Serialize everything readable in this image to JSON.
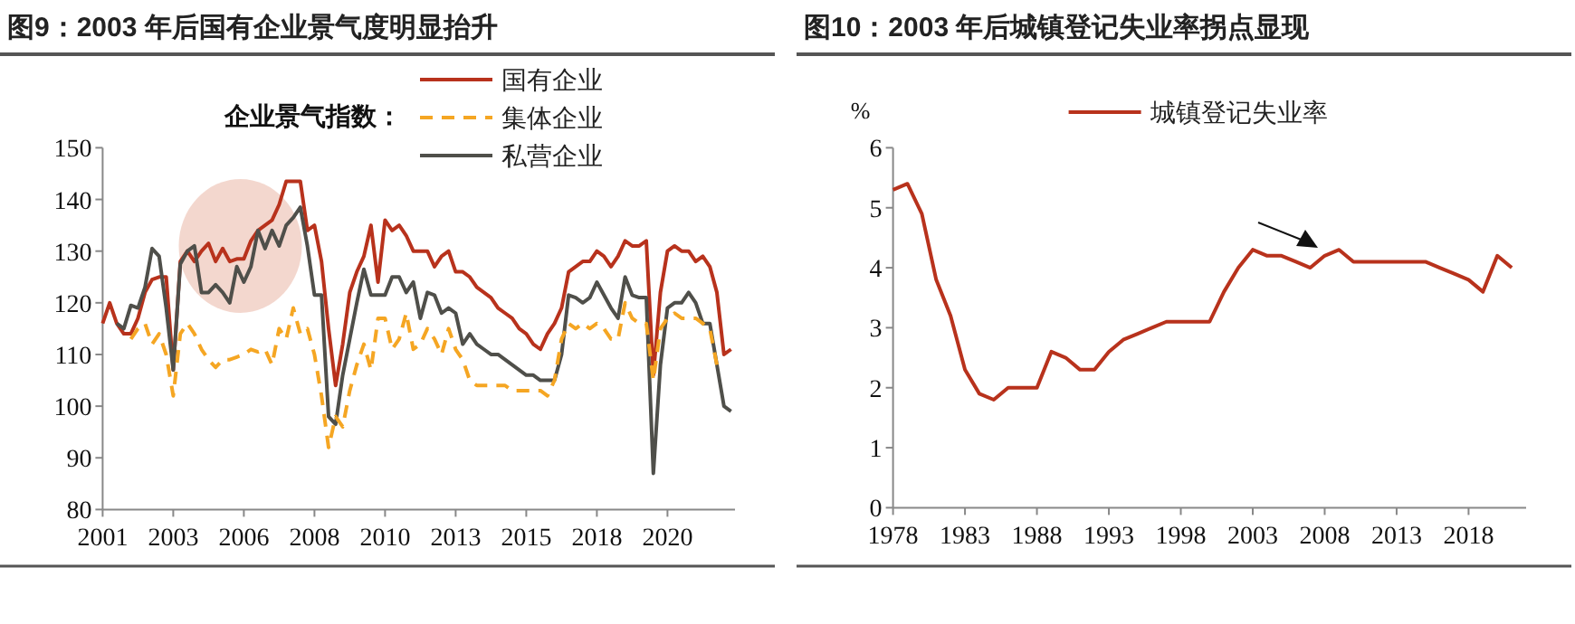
{
  "chart_data": [
    {
      "type": "line",
      "title": "图9：2003 年后国有企业景气度明显抬升",
      "legend_title": "企业景气指数：",
      "legend": "top right",
      "grid": false,
      "categories": [
        "2001",
        null,
        null,
        null,
        null,
        null,
        null,
        null,
        null,
        null,
        "2003",
        null,
        null,
        null,
        null,
        null,
        null,
        null,
        null,
        null,
        "2006",
        null,
        null,
        null,
        null,
        null,
        null,
        null,
        null,
        null,
        "2008",
        null,
        null,
        null,
        null,
        null,
        null,
        null,
        null,
        null,
        "2010",
        null,
        null,
        null,
        null,
        null,
        null,
        null,
        null,
        null,
        "2013",
        null,
        null,
        null,
        null,
        null,
        null,
        null,
        null,
        null,
        "2015",
        null,
        null,
        null,
        null,
        null,
        null,
        null,
        null,
        null,
        "2018",
        null,
        null,
        null,
        null,
        null,
        null,
        null,
        null,
        null,
        "2020",
        null,
        null,
        null,
        null,
        null,
        null,
        null,
        null,
        null
      ],
      "ylim": [
        80,
        150
      ],
      "yticks": [
        80,
        90,
        100,
        110,
        120,
        130,
        140,
        150
      ],
      "series": [
        {
          "name": "国有企业",
          "color": "#b8321c",
          "line_style": "solid",
          "values": [
            116,
            120,
            116,
            114,
            114,
            117,
            122,
            124.5,
            125,
            125,
            107,
            128,
            130,
            128,
            130,
            131.5,
            128,
            130.5,
            128,
            128.5,
            128.5,
            132,
            134,
            135,
            136,
            139,
            143.5,
            143.5,
            143.5,
            134,
            135,
            128,
            115,
            104,
            112,
            122,
            126,
            129,
            135,
            124,
            136,
            134,
            135,
            133,
            130,
            130,
            130,
            127,
            129,
            130,
            126,
            126,
            125,
            123,
            122,
            121,
            119,
            118,
            117,
            115,
            114,
            112,
            111,
            114,
            116,
            119,
            126,
            127,
            128,
            128,
            130,
            129,
            127,
            129,
            132,
            131,
            131,
            132,
            106,
            122,
            130,
            131,
            130,
            130,
            128,
            129,
            127,
            122,
            110,
            111
          ]
        },
        {
          "name": "集体企业",
          "color": "#f5a623",
          "line_style": "dashed",
          "values": [
            null,
            null,
            null,
            null,
            113,
            115,
            116,
            112,
            114,
            110,
            102,
            114,
            116,
            114,
            111,
            109,
            107.5,
            109,
            109,
            109.5,
            110,
            111,
            110.5,
            111,
            108,
            115,
            113,
            119,
            114,
            115,
            110,
            102,
            92,
            98,
            96,
            103,
            108,
            112,
            107,
            117,
            117,
            111,
            113,
            118,
            111,
            112,
            115,
            113,
            110,
            115,
            111,
            109,
            105,
            104,
            104,
            104,
            104,
            104,
            103,
            103,
            103,
            103,
            103,
            102,
            105,
            113,
            116,
            115,
            116,
            115,
            116,
            115,
            113,
            113,
            120,
            117,
            116,
            116,
            105,
            115,
            117,
            118,
            117,
            117,
            117,
            116,
            115,
            108,
            null,
            null
          ]
        },
        {
          "name": "私营企业",
          "color": "#4f4f4a",
          "line_style": "solid",
          "values": [
            null,
            null,
            116,
            115,
            119.5,
            119,
            123,
            130.5,
            129,
            119,
            107,
            127.5,
            130,
            131,
            122,
            122,
            123.5,
            122,
            120,
            127,
            124,
            127,
            134,
            130.5,
            134,
            131,
            135,
            136.5,
            138.5,
            131,
            121.5,
            121.5,
            98,
            96.5,
            106,
            113,
            120,
            126.5,
            121.5,
            121.5,
            121.5,
            125,
            125,
            122,
            124,
            117,
            122,
            121.5,
            118,
            119,
            118,
            112,
            114,
            112,
            111,
            110,
            110,
            109,
            108,
            107,
            106,
            106,
            105,
            105,
            105,
            110,
            121.5,
            121,
            120,
            121,
            124,
            121.5,
            119,
            117,
            125,
            121.5,
            121,
            121,
            87,
            108,
            119,
            120,
            120,
            122,
            120,
            116,
            116,
            108,
            100,
            99
          ]
        }
      ]
    },
    {
      "type": "line",
      "title": "图10：2003 年后城镇登记失业率拐点显现",
      "ylabel": "%",
      "legend": "top left",
      "grid": false,
      "x": [
        1978,
        1979,
        1980,
        1981,
        1982,
        1983,
        1984,
        1985,
        1986,
        1987,
        1988,
        1989,
        1990,
        1991,
        1992,
        1993,
        1994,
        1995,
        1996,
        1997,
        1998,
        1999,
        2000,
        2001,
        2002,
        2003,
        2004,
        2005,
        2006,
        2007,
        2008,
        2009,
        2010,
        2011,
        2012,
        2013,
        2014,
        2015,
        2016,
        2017,
        2018,
        2019,
        2020,
        2021
      ],
      "xlim": [
        1978,
        2022
      ],
      "xticks": [
        1978,
        1983,
        1988,
        1993,
        1998,
        2003,
        2008,
        2013,
        2018
      ],
      "ylim": [
        0,
        6
      ],
      "yticks": [
        0,
        1,
        2,
        3,
        4,
        5,
        6
      ],
      "series": [
        {
          "name": "城镇登记失业率",
          "color": "#b8321c",
          "line_style": "solid",
          "values": [
            5.3,
            5.4,
            4.9,
            3.8,
            3.2,
            2.3,
            1.9,
            1.8,
            2.0,
            2.0,
            2.0,
            2.6,
            2.5,
            2.3,
            2.3,
            2.6,
            2.8,
            2.9,
            3.0,
            3.1,
            3.1,
            3.1,
            3.1,
            3.6,
            4.0,
            4.3,
            4.2,
            4.2,
            4.1,
            4.0,
            4.2,
            4.3,
            4.1,
            4.1,
            4.1,
            4.1,
            4.1,
            4.1,
            4.0,
            3.9,
            3.8,
            3.6,
            4.2,
            4.0
          ]
        }
      ]
    }
  ]
}
